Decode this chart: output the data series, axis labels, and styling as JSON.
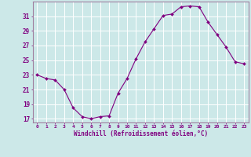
{
  "x": [
    0,
    1,
    2,
    3,
    4,
    5,
    6,
    7,
    8,
    9,
    10,
    11,
    12,
    13,
    14,
    15,
    16,
    17,
    18,
    19,
    20,
    21,
    22,
    23
  ],
  "y": [
    23,
    22.5,
    22.3,
    21,
    18.5,
    17.3,
    17.0,
    17.3,
    17.4,
    20.5,
    22.5,
    25.2,
    27.5,
    29.3,
    31.1,
    31.3,
    32.3,
    32.4,
    32.3,
    30.2,
    28.5,
    26.8,
    24.8,
    24.5
  ],
  "line_color": "#800080",
  "marker": "D",
  "marker_size": 2.0,
  "xlabel": "Windchill (Refroidissement éolien,°C)",
  "xlim": [
    -0.5,
    23.5
  ],
  "ylim": [
    16.5,
    33.0
  ],
  "yticks": [
    17,
    19,
    21,
    23,
    25,
    27,
    29,
    31
  ],
  "xticks": [
    0,
    1,
    2,
    3,
    4,
    5,
    6,
    7,
    8,
    9,
    10,
    11,
    12,
    13,
    14,
    15,
    16,
    17,
    18,
    19,
    20,
    21,
    22,
    23
  ],
  "bg_color": "#cce8e8",
  "grid_color": "#ffffff",
  "text_color": "#800080",
  "spine_color": "#a080a0"
}
